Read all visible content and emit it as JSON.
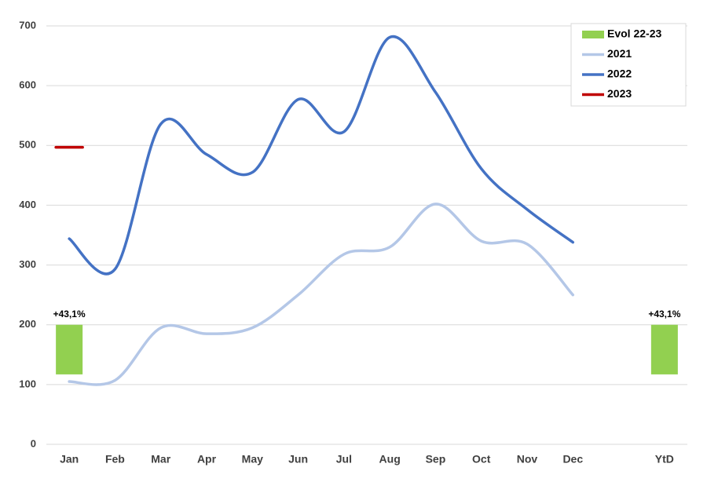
{
  "chart_data": {
    "type": "combo",
    "categories": [
      "Jan",
      "Feb",
      "Mar",
      "Apr",
      "May",
      "Jun",
      "Jul",
      "Aug",
      "Sep",
      "Oct",
      "Nov",
      "Dec",
      null,
      "YtD"
    ],
    "ylim": [
      0,
      700
    ],
    "yticks": [
      0,
      100,
      200,
      300,
      400,
      500,
      600,
      700
    ],
    "grid": true,
    "legend": "top-right",
    "series": [
      {
        "name": "Evol 22-23",
        "type": "bar",
        "color": "#92d050",
        "values": [
          43.1,
          null,
          null,
          null,
          null,
          null,
          null,
          null,
          null,
          null,
          null,
          null,
          null,
          43.1
        ],
        "value_labels": [
          "+43,1%",
          null,
          null,
          null,
          null,
          null,
          null,
          null,
          null,
          null,
          null,
          null,
          null,
          "+43,1%"
        ],
        "span": [
          [
            117,
            200
          ],
          null,
          null,
          null,
          null,
          null,
          null,
          null,
          null,
          null,
          null,
          null,
          null,
          [
            117,
            200
          ]
        ]
      },
      {
        "name": "2021",
        "type": "line",
        "color": "#b4c7e7",
        "values": [
          105,
          107,
          195,
          185,
          195,
          250,
          318,
          330,
          402,
          340,
          335,
          250,
          null,
          null
        ]
      },
      {
        "name": "2022",
        "type": "line",
        "color": "#4472c4",
        "values": [
          344,
          293,
          536,
          485,
          455,
          577,
          523,
          681,
          589,
          461,
          393,
          338,
          null,
          null
        ]
      },
      {
        "name": "2023",
        "type": "line",
        "color": "#c00000",
        "values": [
          497,
          null,
          null,
          null,
          null,
          null,
          null,
          null,
          null,
          null,
          null,
          null,
          null,
          null
        ]
      }
    ]
  }
}
